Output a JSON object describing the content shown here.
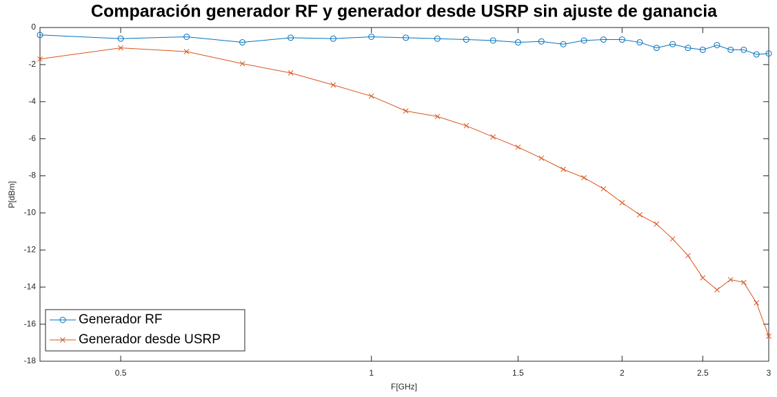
{
  "chart_data": {
    "type": "line",
    "title": "Comparación generador RF y generador desde USRP sin ajuste de ganancia",
    "xlabel": "F[GHz]",
    "ylabel": "P[dBm]",
    "x": [
      0.4,
      0.5,
      0.6,
      0.7,
      0.8,
      0.9,
      1.0,
      1.1,
      1.2,
      1.3,
      1.4,
      1.5,
      1.6,
      1.7,
      1.8,
      1.9,
      2.0,
      2.1,
      2.2,
      2.3,
      2.4,
      2.5,
      2.6,
      2.7,
      2.8,
      2.9,
      3.0
    ],
    "series": [
      {
        "name": "Generador RF",
        "color": "#0072bd",
        "marker": "o",
        "values": [
          -0.4,
          -0.6,
          -0.5,
          -0.8,
          -0.55,
          -0.6,
          -0.5,
          -0.55,
          -0.6,
          -0.65,
          -0.7,
          -0.8,
          -0.75,
          -0.9,
          -0.7,
          -0.65,
          -0.65,
          -0.8,
          -1.1,
          -0.9,
          -1.1,
          -1.2,
          -0.95,
          -1.2,
          -1.2,
          -1.45,
          -1.4
        ]
      },
      {
        "name": "Generador desde USRP",
        "color": "#d95319",
        "marker": "x",
        "values": [
          -1.7,
          -1.1,
          -1.3,
          -1.95,
          -2.45,
          -3.1,
          -3.7,
          -4.5,
          -4.8,
          -5.3,
          -5.9,
          -6.45,
          -7.05,
          -7.65,
          -8.1,
          -8.7,
          -9.45,
          -10.1,
          -10.6,
          -11.4,
          -12.3,
          -13.5,
          -14.15,
          -13.6,
          -13.75,
          -14.85,
          -16.65
        ]
      }
    ],
    "xscale": "log",
    "xlim": [
      0.4,
      3
    ],
    "xticks": [
      0.5,
      1,
      1.5,
      2,
      2.5,
      3
    ],
    "ylim": [
      -18,
      0
    ],
    "yticks": [
      -18,
      -16,
      -14,
      -12,
      -10,
      -8,
      -6,
      -4,
      -2,
      0
    ],
    "legend": "lower left",
    "grid": false
  }
}
